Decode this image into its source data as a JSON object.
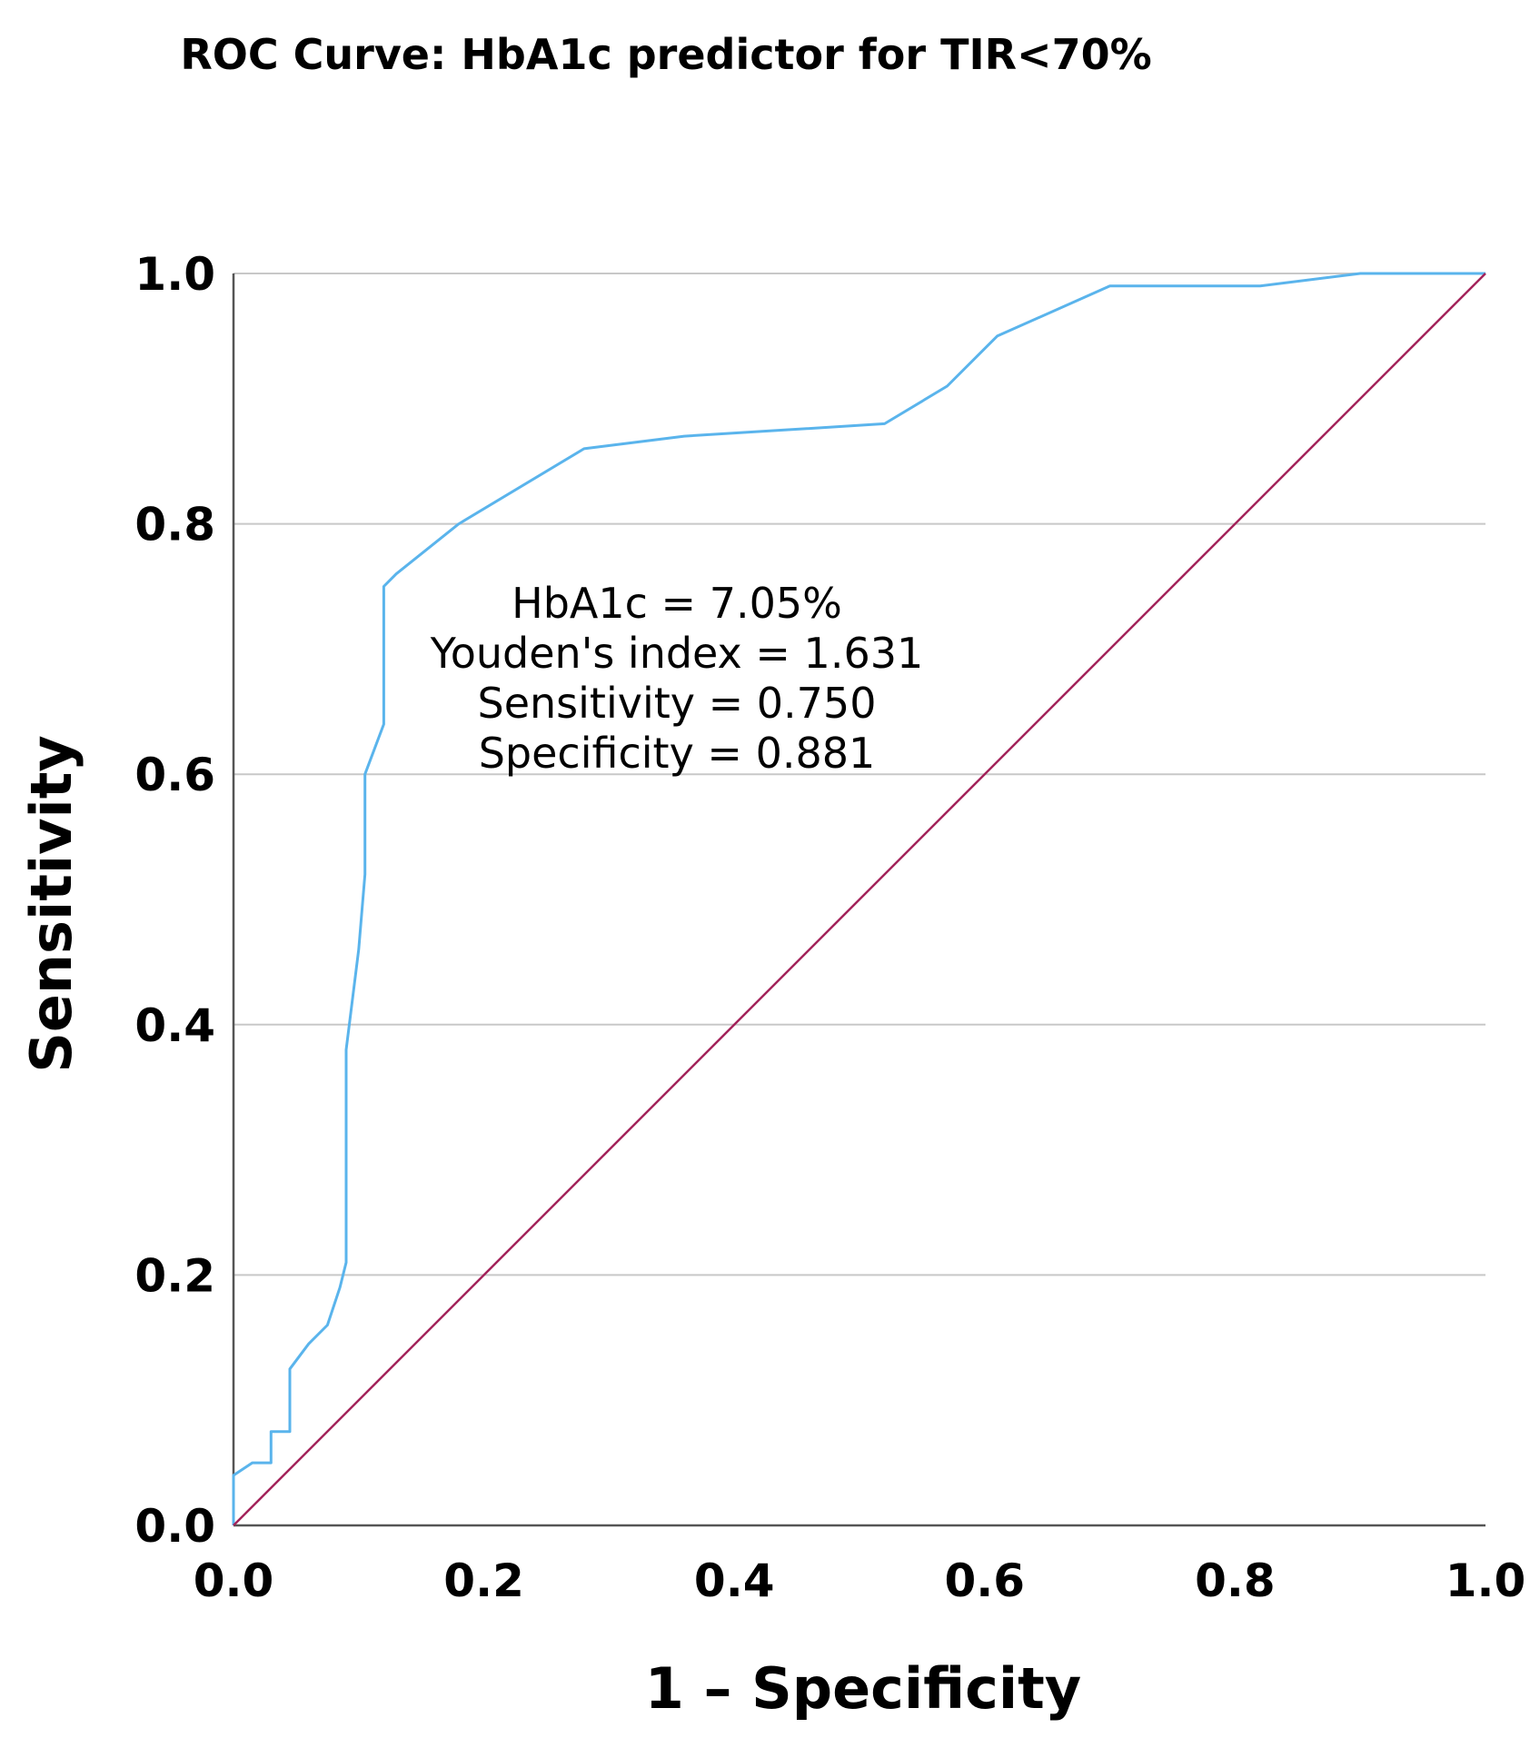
{
  "chart_data": {
    "type": "line",
    "title": "ROC Curve: HbA1c predictor for TIR<70%",
    "xlabel": "1 – Specificity",
    "ylabel": "Sensitivity",
    "xlim": [
      0,
      1
    ],
    "ylim": [
      0,
      1
    ],
    "xticks": [
      "0.0",
      "0.2",
      "0.4",
      "0.6",
      "0.8",
      "1.0"
    ],
    "yticks": [
      "0.0",
      "0.2",
      "0.4",
      "0.6",
      "0.8",
      "1.0"
    ],
    "grid": "horizontal",
    "colors": {
      "roc": "#5ab4ec",
      "reference": "#a3235a",
      "grid": "#c8c8c8",
      "axis": "#555555"
    },
    "series": [
      {
        "key": "roc",
        "x": [
          0.0,
          0.0,
          0.015,
          0.03,
          0.03,
          0.045,
          0.045,
          0.06,
          0.075,
          0.085,
          0.09,
          0.09,
          0.1,
          0.105,
          0.105,
          0.12,
          0.12,
          0.13,
          0.18,
          0.28,
          0.36,
          0.44,
          0.52,
          0.57,
          0.61,
          0.7,
          0.82,
          0.9,
          1.0
        ],
        "y": [
          0.0,
          0.04,
          0.05,
          0.05,
          0.075,
          0.075,
          0.125,
          0.145,
          0.16,
          0.19,
          0.21,
          0.38,
          0.46,
          0.52,
          0.6,
          0.64,
          0.75,
          0.76,
          0.8,
          0.86,
          0.87,
          0.875,
          0.88,
          0.91,
          0.95,
          0.99,
          0.99,
          1.0,
          1.0
        ]
      },
      {
        "key": "reference",
        "x": [
          0,
          1
        ],
        "y": [
          0,
          1
        ]
      }
    ],
    "annotation": [
      "HbA1c = 7.05%",
      "Youden's index = 1.631",
      "Sensitivity = 0.750",
      "Specificity = 0.881"
    ]
  }
}
